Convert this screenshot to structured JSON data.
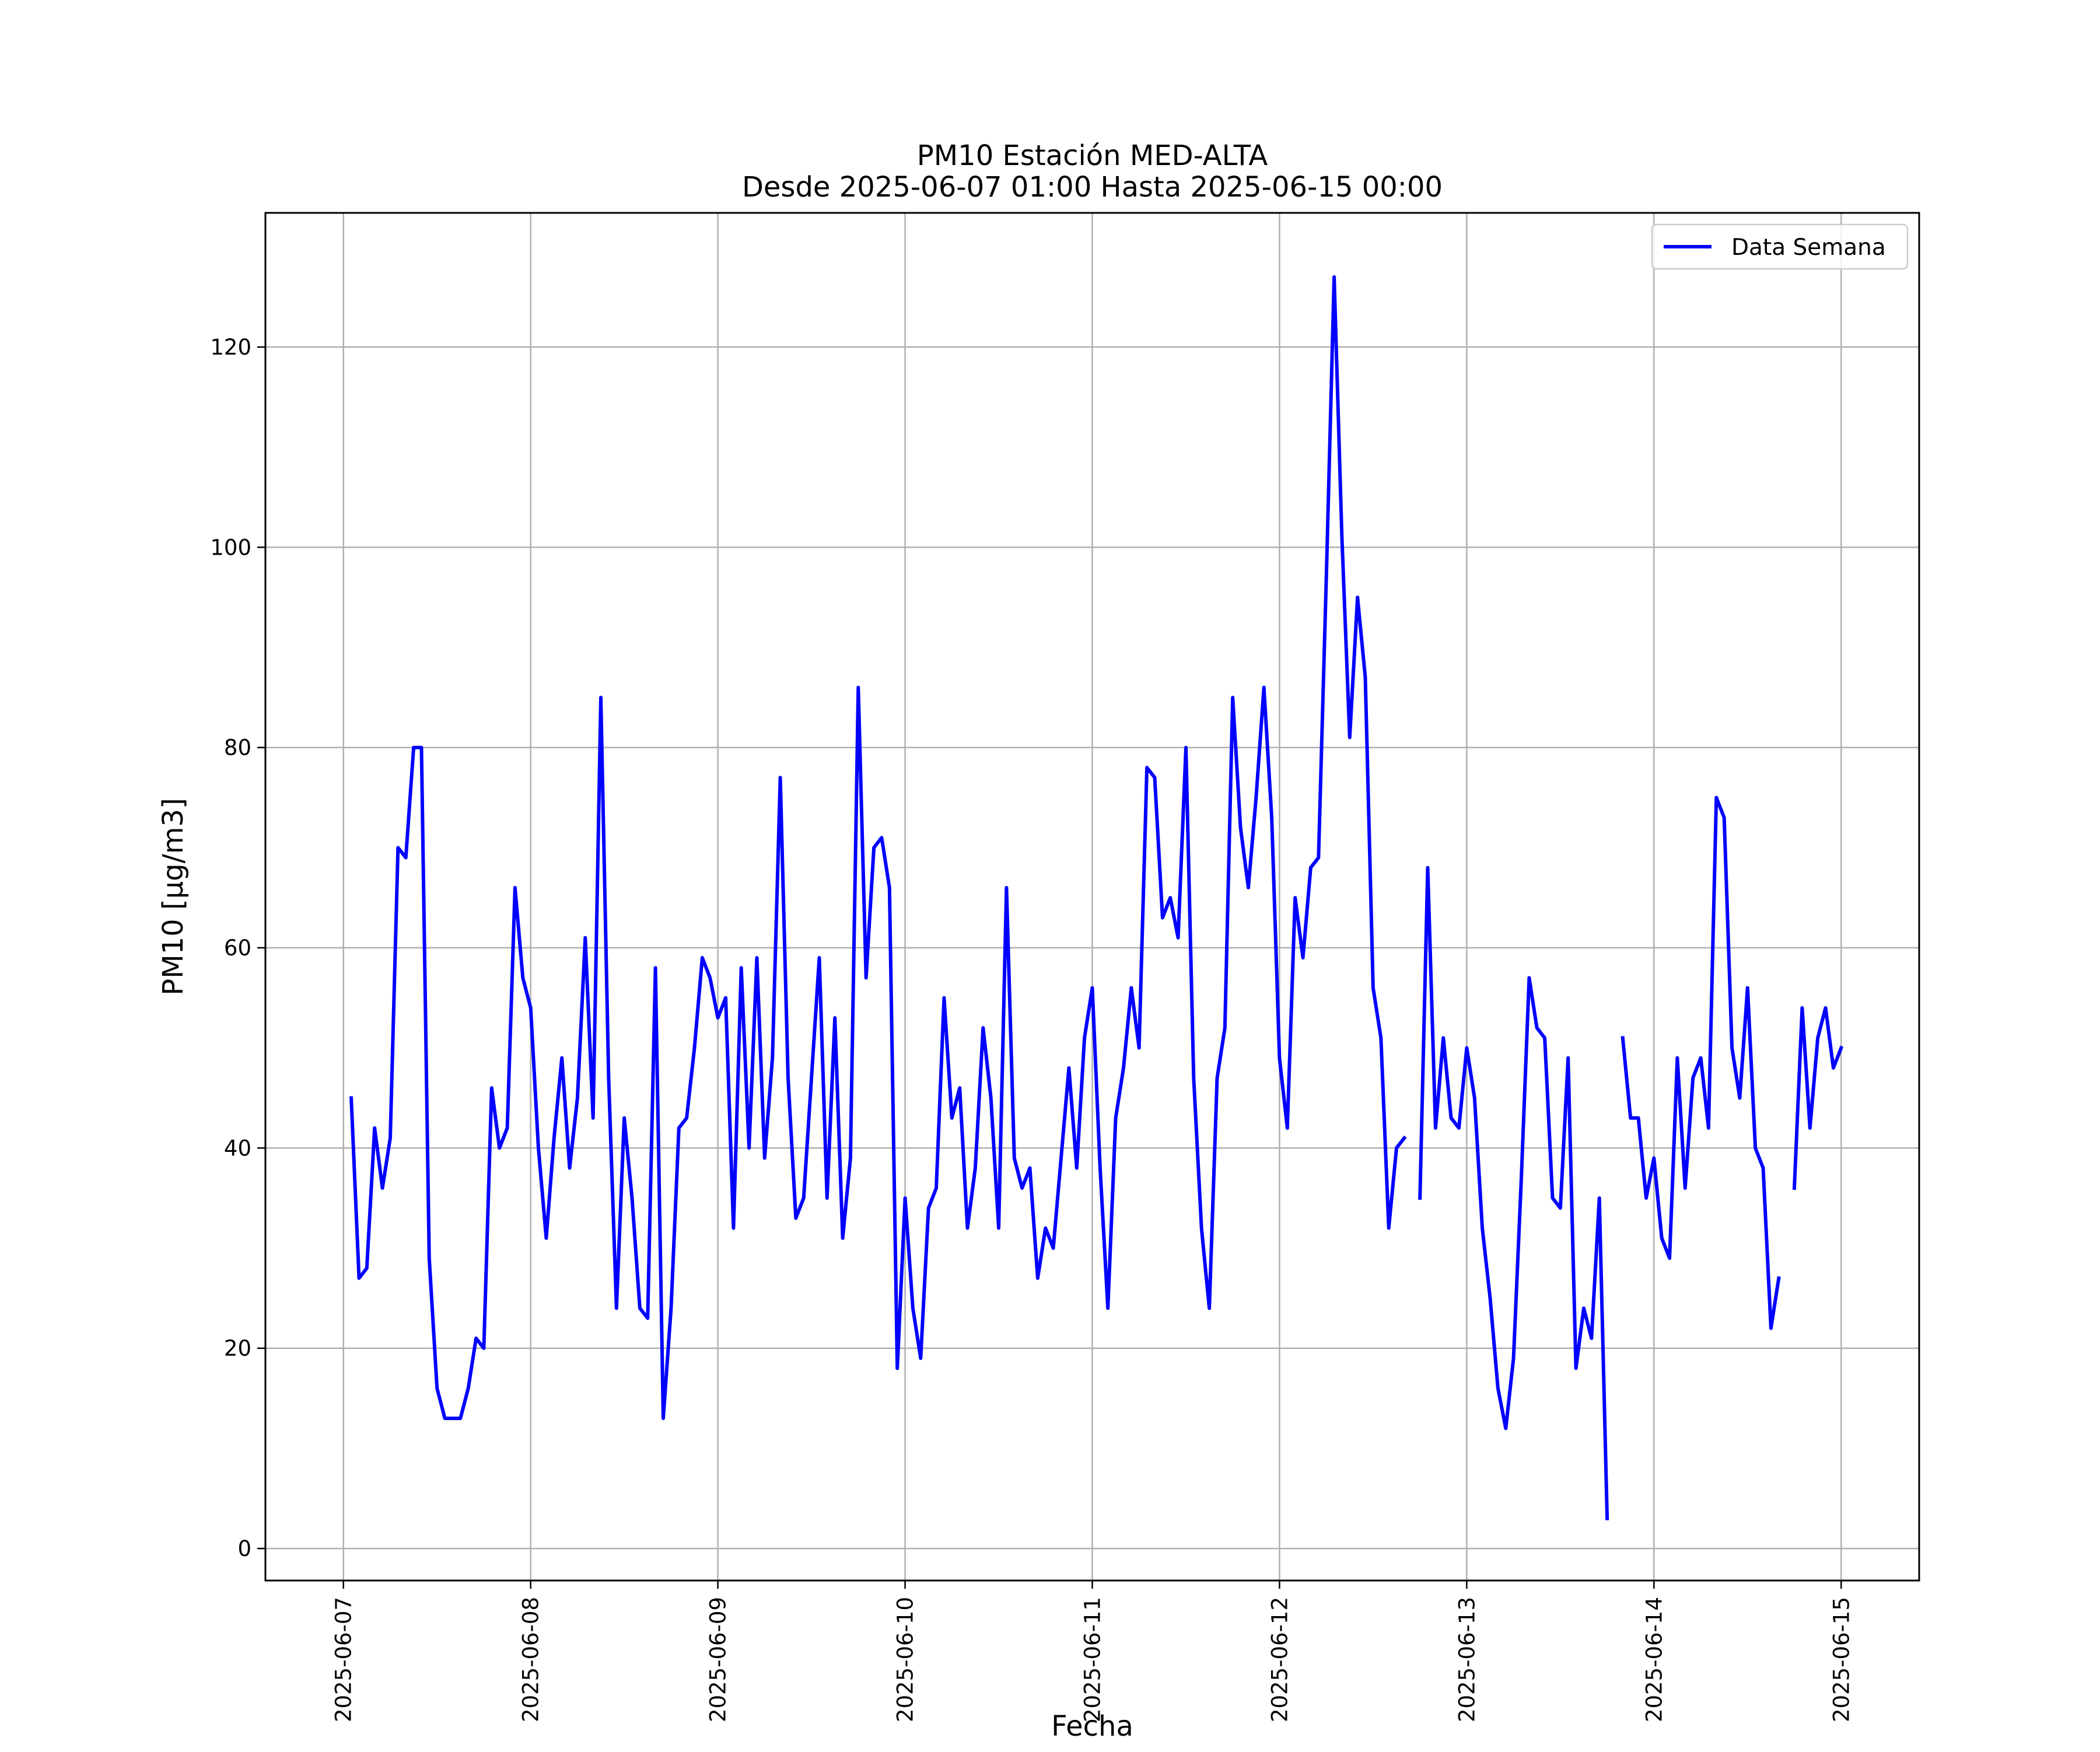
{
  "chart_data": {
    "type": "line",
    "title": "PM10 Estación MED-ALTA",
    "subtitle": "Desde 2025-06-07 01:00 Hasta 2025-06-15 00:00",
    "xlabel": "Fecha",
    "ylabel": "PM10 [μg/m3]",
    "x_ticks": [
      "2025-06-07",
      "2025-06-08",
      "2025-06-09",
      "2025-06-10",
      "2025-06-11",
      "2025-06-12",
      "2025-06-13",
      "2025-06-14",
      "2025-06-15"
    ],
    "y_ticks": [
      "0",
      "20",
      "40",
      "60",
      "80",
      "100",
      "120"
    ],
    "xlim": [
      "2025-06-06 14:00",
      "2025-06-15 10:00"
    ],
    "ylim": [
      -3.2,
      133.4
    ],
    "grid": true,
    "legend_position": "top-right",
    "line_color": "#0000ff",
    "x_start": "2025-06-07 01:00",
    "x_step": "1 hour",
    "series": [
      {
        "name": "Data Semana",
        "color": "#0000ff",
        "values": [
          45,
          27,
          28,
          42,
          36,
          41,
          70,
          69,
          80,
          80,
          29,
          16,
          13,
          13,
          13,
          16,
          21,
          20,
          46,
          40,
          42,
          66,
          57,
          54,
          40,
          31,
          41,
          49,
          38,
          45,
          61,
          43,
          85,
          47,
          24,
          43,
          35,
          24,
          23,
          58,
          13,
          24,
          42,
          43,
          50,
          59,
          57,
          53,
          55,
          32,
          58,
          40,
          59,
          39,
          49,
          77,
          47,
          33,
          35,
          47,
          59,
          35,
          53,
          31,
          39,
          86,
          57,
          70,
          71,
          66,
          18,
          35,
          24,
          19,
          34,
          36,
          55,
          43,
          46,
          32,
          38,
          52,
          45,
          32,
          66,
          39,
          36,
          38,
          27,
          32,
          30,
          39,
          48,
          38,
          51,
          56,
          38,
          24,
          43,
          48,
          56,
          50,
          78,
          77,
          63,
          65,
          61,
          80,
          47,
          32,
          24,
          47,
          52,
          85,
          72,
          66,
          75,
          86,
          73,
          49,
          42,
          65,
          59,
          68,
          69,
          97,
          127,
          101,
          81,
          95,
          87,
          56,
          51,
          32,
          40,
          41,
          null,
          35,
          68,
          42,
          51,
          43,
          42,
          50,
          45,
          32,
          25,
          16,
          12,
          19,
          37,
          57,
          52,
          51,
          35,
          34,
          49,
          18,
          24,
          21,
          35,
          3,
          null,
          51,
          43,
          43,
          35,
          39,
          31,
          29,
          49,
          36,
          47,
          49,
          42,
          75,
          73,
          50,
          45,
          56,
          40,
          38,
          22,
          27,
          null,
          36,
          54,
          42,
          51,
          54,
          48,
          50
        ]
      }
    ]
  }
}
